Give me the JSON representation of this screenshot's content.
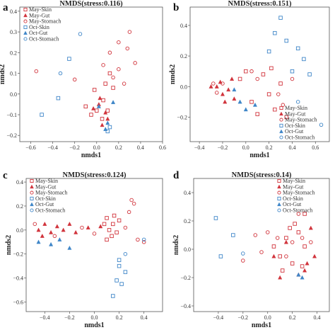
{
  "colors": {
    "may": "#d1343c",
    "oct": "#3f86c8"
  },
  "chart_data": [
    {
      "type": "scatter",
      "panel_label": "a",
      "title": "NMDS(stress:0.116)",
      "xlabel": "nmds1",
      "ylabel": "nmds2",
      "xlim": [
        -0.7,
        0.6
      ],
      "ylim": [
        -0.23,
        0.42
      ],
      "xticks": [
        -0.6,
        -0.4,
        -0.2,
        0,
        0.2,
        0.4,
        0.6
      ],
      "xtick_labels": [
        "−0.6",
        "−0.4",
        "−0.2",
        "0.0",
        "0.2",
        "0.4",
        "0.6"
      ],
      "yticks": [
        -0.2,
        -0.1,
        0,
        0.1,
        0.2,
        0.3,
        0.4
      ],
      "ytick_labels": [
        "−0.2",
        "−0.1",
        "0.0",
        "0.1",
        "0.2",
        "0.3",
        "0.4"
      ],
      "legend": {
        "position": "top-left",
        "entries": [
          "May-Skin",
          "May-Gut",
          "May-Stomach",
          "Oct-Skin",
          "Oct-Gut",
          "Oct-Stomach"
        ]
      },
      "series": [
        {
          "name": "May-Skin",
          "marker": "square",
          "color": "#d1343c",
          "points": [
            [
              0,
              -0.08
            ],
            [
              -0.05,
              -0.1
            ],
            [
              0.06,
              -0.03
            ],
            [
              0.1,
              -0.08
            ],
            [
              -0.02,
              0.02
            ],
            [
              0.08,
              0.05
            ],
            [
              0.15,
              0.03
            ],
            [
              0.05,
              -0.12
            ],
            [
              -0.1,
              -0.06
            ],
            [
              0.12,
              0.1
            ]
          ]
        },
        {
          "name": "May-Gut",
          "marker": "triangle",
          "color": "#d1343c",
          "points": [
            [
              0.02,
              -0.05
            ],
            [
              0.05,
              -0.15
            ],
            [
              0.1,
              -0.12
            ],
            [
              -0.03,
              -0.07
            ],
            [
              0.08,
              -0.09
            ],
            [
              0.03,
              -0.02
            ]
          ]
        },
        {
          "name": "May-Stomach",
          "marker": "circle",
          "color": "#d1343c",
          "points": [
            [
              0.12,
              0.2
            ],
            [
              0.2,
              0.25
            ],
            [
              0.28,
              0.22
            ],
            [
              0.35,
              0.15
            ],
            [
              0.06,
              0.14
            ],
            [
              0.15,
              0.08
            ],
            [
              0.2,
              0.12
            ],
            [
              0.25,
              0.05
            ],
            [
              -0.55,
              0.11
            ],
            [
              -0.2,
              0.07
            ],
            [
              0.3,
              0.3
            ]
          ]
        },
        {
          "name": "Oct-Skin",
          "marker": "square",
          "color": "#3f86c8",
          "points": [
            [
              -0.5,
              -0.1
            ],
            [
              -0.35,
              -0.02
            ],
            [
              -0.25,
              0.17
            ],
            [
              0.1,
              -0.18
            ],
            [
              0.12,
              -0.16
            ]
          ]
        },
        {
          "name": "Oct-Gut",
          "marker": "triangle",
          "color": "#3f86c8",
          "points": [
            [
              0.15,
              -0.04
            ],
            [
              0.1,
              -0.14
            ],
            [
              0.02,
              -0.06
            ],
            [
              0.08,
              -0.17
            ]
          ]
        },
        {
          "name": "Oct-Stomach",
          "marker": "circle",
          "color": "#3f86c8",
          "points": [
            [
              -0.15,
              0.29
            ],
            [
              -0.33,
              0.1
            ]
          ]
        }
      ]
    },
    {
      "type": "scatter",
      "panel_label": "b",
      "title": "NMDS(stress:0.151)",
      "xlabel": "nmds1",
      "ylabel": "nmds2",
      "xlim": [
        -0.48,
        0.72
      ],
      "ylim": [
        -0.36,
        0.52
      ],
      "xticks": [
        -0.4,
        -0.2,
        0,
        0.2,
        0.4,
        0.6
      ],
      "xtick_labels": [
        "−0.4",
        "−0.2",
        "0.0",
        "0.2",
        "0.4",
        "0.6"
      ],
      "yticks": [
        -0.2,
        0,
        0.2,
        0.4
      ],
      "ytick_labels": [
        "−0.2",
        "0.0",
        "0.2",
        "0.4"
      ],
      "legend": {
        "position": "bottom-right",
        "entries": [
          "May-Skin",
          "May-Gut",
          "May-Stomach",
          "Oct-Skin",
          "Oct-Gut",
          "Oct-Stomach"
        ]
      },
      "series": [
        {
          "name": "May-Skin",
          "marker": "square",
          "color": "#d1343c",
          "points": [
            [
              -0.05,
              0.05
            ],
            [
              0.05,
              -0.1
            ],
            [
              0.15,
              0.08
            ],
            [
              0.2,
              -0.05
            ],
            [
              0.25,
              -0.15
            ],
            [
              0.3,
              0.02
            ],
            [
              0.35,
              -0.2
            ],
            [
              0.1,
              -0.18
            ],
            [
              0,
              0.1
            ],
            [
              0.22,
              0.12
            ]
          ]
        },
        {
          "name": "May-Gut",
          "marker": "triangle",
          "color": "#d1343c",
          "points": [
            [
              -0.25,
              0
            ],
            [
              -0.2,
              -0.05
            ],
            [
              -0.15,
              -0.02
            ],
            [
              -0.1,
              -0.08
            ],
            [
              -0.22,
              0.03
            ],
            [
              -0.18,
              -0.1
            ],
            [
              -0.12,
              0.05
            ],
            [
              -0.3,
              0
            ]
          ]
        },
        {
          "name": "May-Stomach",
          "marker": "circle",
          "color": "#d1343c",
          "points": [
            [
              -0.28,
              0.02
            ],
            [
              -0.25,
              -0.04
            ],
            [
              -0.2,
              0.02
            ],
            [
              0.05,
              0.1
            ],
            [
              0.1,
              0.05
            ],
            [
              0.28,
              -0.05
            ],
            [
              0.32,
              -0.12
            ],
            [
              0.4,
              0.05
            ]
          ]
        },
        {
          "name": "Oct-Skin",
          "marker": "square",
          "color": "#3f86c8",
          "points": [
            [
              0.3,
              0.45
            ],
            [
              0.35,
              0.3
            ],
            [
              0.25,
              0.35
            ],
            [
              0.45,
              0.25
            ],
            [
              0.5,
              0.18
            ],
            [
              0.4,
              0.1
            ],
            [
              0.55,
              0.08
            ],
            [
              0.2,
              0.23
            ]
          ]
        },
        {
          "name": "Oct-Gut",
          "marker": "triangle",
          "color": "#3f86c8",
          "points": [
            [
              -0.05,
              -0.1
            ],
            [
              0,
              -0.15
            ],
            [
              0.08,
              -0.12
            ],
            [
              -0.1,
              -0.02
            ]
          ]
        },
        {
          "name": "Oct-Stomach",
          "marker": "circle",
          "color": "#3f86c8",
          "points": [
            [
              0.65,
              -0.25
            ],
            [
              0.45,
              -0.1
            ]
          ]
        }
      ]
    },
    {
      "type": "scatter",
      "panel_label": "c",
      "title": "NMDS(stress:0.124)",
      "xlabel": "nmds1",
      "ylabel": "nmds2",
      "xlim": [
        -0.55,
        0.55
      ],
      "ylim": [
        -0.68,
        0.43
      ],
      "xticks": [
        -0.4,
        -0.2,
        0,
        0.2,
        0.4
      ],
      "xtick_labels": [
        "−0.4",
        "−0.2",
        "0.0",
        "0.2",
        "0.4"
      ],
      "yticks": [
        -0.6,
        -0.4,
        -0.2,
        0,
        0.2,
        0.4
      ],
      "ytick_labels": [
        "−0.6",
        "−0.4",
        "−0.2",
        "0.0",
        "0.2",
        "0.4"
      ],
      "legend": {
        "position": "top-left",
        "entries": [
          "May-Skin",
          "May-Gut",
          "May-Stomach",
          "Oct-Skin",
          "Oct-Gut",
          "Oct-Stomach"
        ]
      },
      "series": [
        {
          "name": "May-Skin",
          "marker": "square",
          "color": "#d1343c",
          "points": [
            [
              0.1,
              0.1
            ],
            [
              0.15,
              0.05
            ],
            [
              0.12,
              0
            ],
            [
              0.18,
              -0.02
            ],
            [
              0.08,
              0.05
            ],
            [
              0.2,
              0.08
            ],
            [
              0.14,
              -0.05
            ],
            [
              0.1,
              -0.08
            ],
            [
              0.16,
              0.12
            ]
          ]
        },
        {
          "name": "May-Gut",
          "marker": "triangle",
          "color": "#d1343c",
          "points": [
            [
              -0.45,
              0
            ],
            [
              -0.4,
              0.05
            ],
            [
              -0.35,
              -0.02
            ],
            [
              -0.3,
              0.03
            ],
            [
              -0.25,
              0
            ],
            [
              -0.2,
              0.05
            ],
            [
              -0.15,
              -0.02
            ],
            [
              -0.42,
              -0.05
            ],
            [
              -0.05,
              0.02
            ],
            [
              0.05,
              0.03
            ]
          ]
        },
        {
          "name": "May-Stomach",
          "marker": "circle",
          "color": "#d1343c",
          "points": [
            [
              -0.48,
              0.05
            ],
            [
              -0.32,
              -0.05
            ],
            [
              -0.1,
              0.02
            ],
            [
              0,
              -0.03
            ],
            [
              0.3,
              0.25
            ],
            [
              0.28,
              0.15
            ],
            [
              0.25,
              0.02
            ],
            [
              0.35,
              -0.08
            ],
            [
              0.4,
              -0.1
            ],
            [
              0.32,
              0.22
            ]
          ]
        },
        {
          "name": "Oct-Skin",
          "marker": "square",
          "color": "#3f86c8",
          "points": [
            [
              0.2,
              -0.3
            ],
            [
              0.18,
              -0.42
            ],
            [
              0.22,
              -0.45
            ],
            [
              0.15,
              -0.55
            ],
            [
              0.2,
              -0.25
            ],
            [
              0.25,
              -0.35
            ]
          ]
        },
        {
          "name": "Oct-Gut",
          "marker": "triangle",
          "color": "#3f86c8",
          "points": [
            [
              -0.45,
              -0.1
            ],
            [
              -0.35,
              -0.12
            ],
            [
              -0.28,
              -0.08
            ],
            [
              -0.2,
              -0.15
            ]
          ]
        },
        {
          "name": "Oct-Stomach",
          "marker": "circle",
          "color": "#3f86c8",
          "points": [
            [
              0.25,
              -0.2
            ],
            [
              0.4,
              -0.08
            ]
          ]
        }
      ]
    },
    {
      "type": "scatter",
      "panel_label": "d",
      "title": "NMDS(stress:0.14)",
      "xlabel": "nmds1",
      "ylabel": "nmds2",
      "xlim": [
        -0.6,
        0.5
      ],
      "ylim": [
        -0.44,
        0.5
      ],
      "xticks": [
        -0.4,
        -0.2,
        0,
        0.2,
        0.4
      ],
      "xtick_labels": [
        "−0.4",
        "−0.2",
        "0.0",
        "0.2",
        "0.4"
      ],
      "yticks": [
        -0.4,
        -0.2,
        0,
        0.2,
        0.4
      ],
      "ytick_labels": [
        "−0.4",
        "−0.2",
        "0.0",
        "0.2",
        "0.4"
      ],
      "legend": {
        "position": "top-right",
        "entries": [
          "May-Skin",
          "May-Gut",
          "May-Stomach",
          "Oct-Skin",
          "Oct-Gut",
          "Oct-Stomach"
        ]
      },
      "series": [
        {
          "name": "May-Skin",
          "marker": "square",
          "color": "#d1343c",
          "points": [
            [
              0.05,
              0.02
            ],
            [
              0.1,
              -0.05
            ],
            [
              0.15,
              0.08
            ],
            [
              0.2,
              -0.1
            ],
            [
              0.25,
              0.12
            ],
            [
              0.3,
              0.02
            ],
            [
              0.28,
              -0.12
            ],
            [
              0.18,
              0.15
            ],
            [
              0.22,
              0.18
            ],
            [
              0.12,
              -0.15
            ],
            [
              0.3,
              0.25
            ]
          ]
        },
        {
          "name": "May-Gut",
          "marker": "triangle",
          "color": "#d1343c",
          "points": [
            [
              0.35,
              0.15
            ],
            [
              0.3,
              -0.15
            ],
            [
              0.1,
              -0.2
            ],
            [
              0.05,
              -0.05
            ],
            [
              0.25,
              -0.18
            ],
            [
              0.32,
              -0.1
            ],
            [
              0.15,
              0.05
            ],
            [
              0.38,
              -0.05
            ]
          ]
        },
        {
          "name": "May-Stomach",
          "marker": "circle",
          "color": "#d1343c",
          "points": [
            [
              0,
              0.12
            ],
            [
              -0.05,
              -0.02
            ],
            [
              0.08,
              0.08
            ],
            [
              0.2,
              0.05
            ],
            [
              0.25,
              0.25
            ],
            [
              0.28,
              0.08
            ],
            [
              -0.1,
              0.1
            ],
            [
              0.15,
              -0.05
            ],
            [
              0.35,
              0.05
            ],
            [
              -0.2,
              -0.08
            ]
          ]
        },
        {
          "name": "Oct-Skin",
          "marker": "square",
          "color": "#3f86c8",
          "points": [
            [
              -0.42,
              0.22
            ],
            [
              -0.38,
              -0.05
            ],
            [
              -0.28,
              0.1
            ]
          ]
        },
        {
          "name": "Oct-Gut",
          "marker": "triangle",
          "color": "#3f86c8",
          "points": [
            [
              0.25,
              -0.18
            ],
            [
              0.28,
              -0.2
            ]
          ]
        },
        {
          "name": "Oct-Stomach",
          "marker": "circle",
          "color": "#3f86c8",
          "points": [
            [
              -0.2,
              -0.03
            ]
          ]
        }
      ]
    }
  ]
}
